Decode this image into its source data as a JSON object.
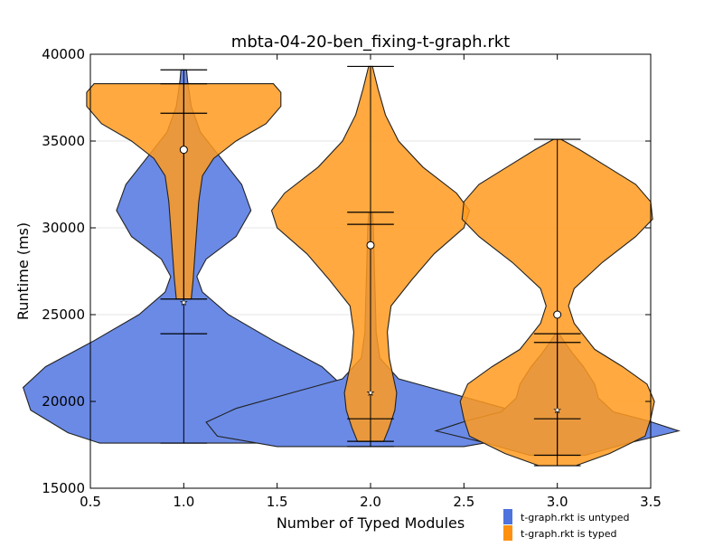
{
  "chart_data": {
    "type": "violin",
    "title": "mbta-04-20-ben_fixing-t-graph.rkt",
    "xlabel": "Number of Typed Modules",
    "ylabel": "Runtime (ms)",
    "xlim": [
      0.5,
      3.5
    ],
    "ylim": [
      15000,
      40000
    ],
    "xticks": [
      "0.5",
      "1.0",
      "1.5",
      "2.0",
      "2.5",
      "3.0",
      "3.5"
    ],
    "yticks": [
      "15000",
      "20000",
      "25000",
      "30000",
      "35000",
      "40000"
    ],
    "grid": "horizontal",
    "legend_position": "bottom-right",
    "series": [
      {
        "name": "t-graph.rkt is untyped",
        "color": "#6a8ae6",
        "violins": [
          {
            "x": 1.0,
            "min": 17600,
            "max": 39100,
            "mean": 25700,
            "median": 23900,
            "profile": [
              [
                17600,
                0.45
              ],
              [
                18200,
                0.62
              ],
              [
                19500,
                0.82
              ],
              [
                20800,
                0.86
              ],
              [
                22000,
                0.74
              ],
              [
                23500,
                0.48
              ],
              [
                25000,
                0.24
              ],
              [
                26300,
                0.1
              ],
              [
                27200,
                0.07
              ],
              [
                28200,
                0.12
              ],
              [
                29500,
                0.28
              ],
              [
                31000,
                0.36
              ],
              [
                32500,
                0.31
              ],
              [
                34000,
                0.2
              ],
              [
                35500,
                0.09
              ],
              [
                37000,
                0.04
              ],
              [
                38500,
                0.02
              ],
              [
                39100,
                0.015
              ]
            ]
          },
          {
            "x": 2.0,
            "min": 17400,
            "max": 30900,
            "mean": 20500,
            "median": 19000,
            "profile": [
              [
                17400,
                0.5
              ],
              [
                18000,
                0.82
              ],
              [
                18800,
                0.88
              ],
              [
                19600,
                0.72
              ],
              [
                20500,
                0.42
              ],
              [
                21300,
                0.15
              ],
              [
                22500,
                0.05
              ],
              [
                24000,
                0.03
              ],
              [
                26000,
                0.025
              ],
              [
                28000,
                0.02
              ],
              [
                30000,
                0.015
              ],
              [
                30900,
                0.01
              ]
            ]
          },
          {
            "x": 3.0,
            "min": 16900,
            "max": 23900,
            "mean": 19500,
            "median": 19000,
            "profile": [
              [
                16900,
                0.15
              ],
              [
                17600,
                0.38
              ],
              [
                18300,
                0.65
              ],
              [
                18900,
                0.48
              ],
              [
                19400,
                0.3
              ],
              [
                20200,
                0.22
              ],
              [
                21000,
                0.2
              ],
              [
                22000,
                0.14
              ],
              [
                22800,
                0.08
              ],
              [
                23400,
                0.04
              ],
              [
                23900,
                0.01
              ]
            ]
          }
        ]
      },
      {
        "name": "t-graph.rkt is typed",
        "color": "#ff9a1e",
        "violins": [
          {
            "x": 1.0,
            "min": 25900,
            "max": 38300,
            "mean": 34500,
            "median": 36600,
            "profile": [
              [
                25900,
                0.04
              ],
              [
                27000,
                0.05
              ],
              [
                28500,
                0.06
              ],
              [
                30000,
                0.07
              ],
              [
                31500,
                0.08
              ],
              [
                33000,
                0.1
              ],
              [
                34000,
                0.16
              ],
              [
                35000,
                0.28
              ],
              [
                36000,
                0.44
              ],
              [
                37000,
                0.52
              ],
              [
                37800,
                0.52
              ],
              [
                38300,
                0.48
              ]
            ]
          },
          {
            "x": 2.0,
            "min": 17700,
            "max": 39300,
            "mean": 29000,
            "median": 30200,
            "profile": [
              [
                17700,
                0.07
              ],
              [
                18500,
                0.1
              ],
              [
                19500,
                0.13
              ],
              [
                20500,
                0.14
              ],
              [
                21500,
                0.12
              ],
              [
                22500,
                0.1
              ],
              [
                24000,
                0.09
              ],
              [
                25500,
                0.11
              ],
              [
                27000,
                0.22
              ],
              [
                28500,
                0.34
              ],
              [
                30000,
                0.5
              ],
              [
                31000,
                0.53
              ],
              [
                32000,
                0.46
              ],
              [
                33500,
                0.28
              ],
              [
                35000,
                0.15
              ],
              [
                36500,
                0.08
              ],
              [
                38000,
                0.04
              ],
              [
                39300,
                0.01
              ]
            ]
          },
          {
            "x": 3.0,
            "min": 16300,
            "max": 35100,
            "mean": 25000,
            "median": 23400,
            "profile": [
              [
                16300,
                0.1
              ],
              [
                17000,
                0.28
              ],
              [
                18000,
                0.47
              ],
              [
                19000,
                0.5
              ],
              [
                20000,
                0.52
              ],
              [
                21000,
                0.48
              ],
              [
                22000,
                0.35
              ],
              [
                23000,
                0.2
              ],
              [
                24500,
                0.09
              ],
              [
                25500,
                0.06
              ],
              [
                26500,
                0.09
              ],
              [
                28000,
                0.24
              ],
              [
                29500,
                0.42
              ],
              [
                30500,
                0.51
              ],
              [
                31500,
                0.5
              ],
              [
                32500,
                0.42
              ],
              [
                33500,
                0.27
              ],
              [
                34500,
                0.12
              ],
              [
                35100,
                0.02
              ]
            ]
          }
        ]
      }
    ]
  }
}
